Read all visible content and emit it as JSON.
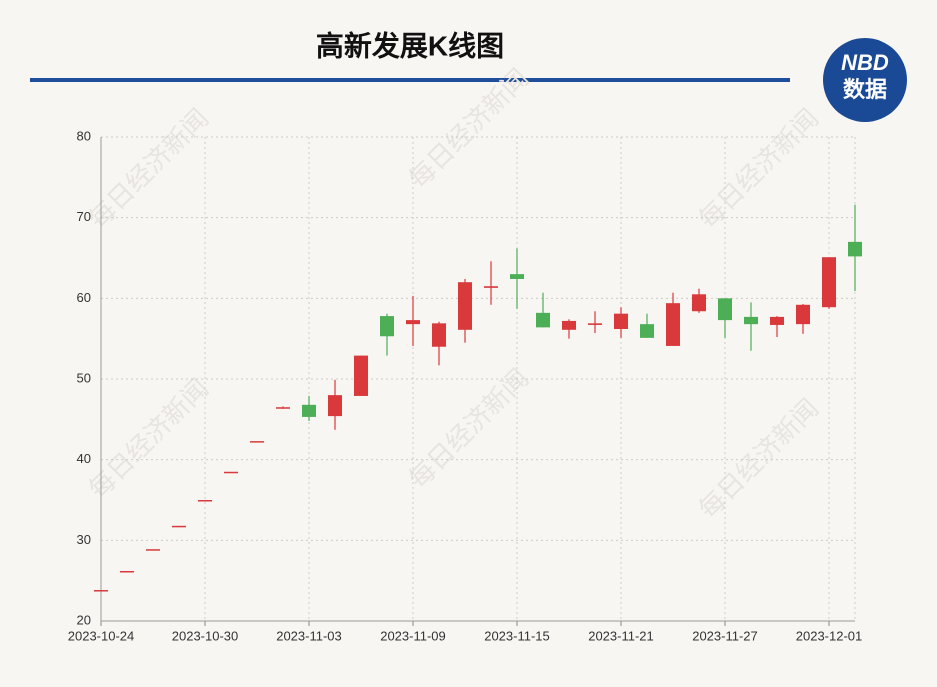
{
  "chart_data": {
    "type": "candlestick",
    "title": "高新发展K线图",
    "logo": {
      "top": "NBD",
      "bottom": "数据"
    },
    "watermark": "每日经济新闻",
    "categories": [
      "2023-10-24",
      null,
      null,
      null,
      "2023-10-30",
      null,
      null,
      null,
      "2023-11-03",
      null,
      null,
      null,
      "2023-11-09",
      null,
      null,
      null,
      "2023-11-15",
      null,
      null,
      null,
      "2023-11-21",
      null,
      null,
      null,
      "2023-11-27",
      null,
      null,
      null,
      "2023-12-01",
      null
    ],
    "open": [
      23.84,
      26.2,
      28.9,
      31.8,
      35.0,
      38.5,
      42.3,
      46.5,
      46.8,
      45.4,
      47.9,
      57.8,
      56.8,
      54.0,
      56.1,
      61.3,
      63.0,
      58.2,
      56.1,
      56.7,
      56.2,
      56.8,
      54.1,
      58.4,
      60.0,
      57.7,
      56.7,
      56.8,
      58.9,
      67.0
    ],
    "high": [
      23.84,
      26.2,
      28.9,
      31.8,
      35.0,
      38.5,
      42.3,
      46.6,
      47.9,
      49.9,
      52.9,
      58.1,
      60.3,
      57.1,
      62.4,
      64.6,
      66.2,
      60.7,
      57.4,
      58.4,
      58.9,
      58.1,
      60.7,
      61.2,
      60.0,
      59.5,
      57.8,
      59.3,
      65.1,
      71.6
    ],
    "low": [
      23.84,
      26.2,
      28.9,
      31.8,
      35.0,
      38.5,
      42.3,
      46.3,
      44.8,
      43.7,
      47.9,
      52.9,
      54.1,
      51.7,
      54.5,
      59.2,
      58.7,
      56.4,
      55.0,
      55.7,
      55.1,
      55.1,
      54.1,
      58.2,
      55.1,
      53.5,
      55.2,
      55.6,
      58.7,
      60.9
    ],
    "close": [
      23.84,
      26.2,
      28.9,
      31.8,
      35.0,
      38.5,
      42.3,
      46.5,
      45.3,
      48.0,
      52.9,
      55.3,
      57.3,
      56.9,
      62.0,
      61.5,
      62.4,
      56.4,
      57.2,
      56.9,
      58.1,
      55.1,
      59.4,
      60.5,
      57.3,
      56.8,
      57.7,
      59.2,
      65.1,
      65.2
    ],
    "up_color": "#d9393b",
    "down_color": "#4cae55",
    "ylim": [
      20,
      80
    ],
    "yticks": [
      20,
      30,
      40,
      50,
      60,
      70,
      80
    ],
    "grid": true
  }
}
